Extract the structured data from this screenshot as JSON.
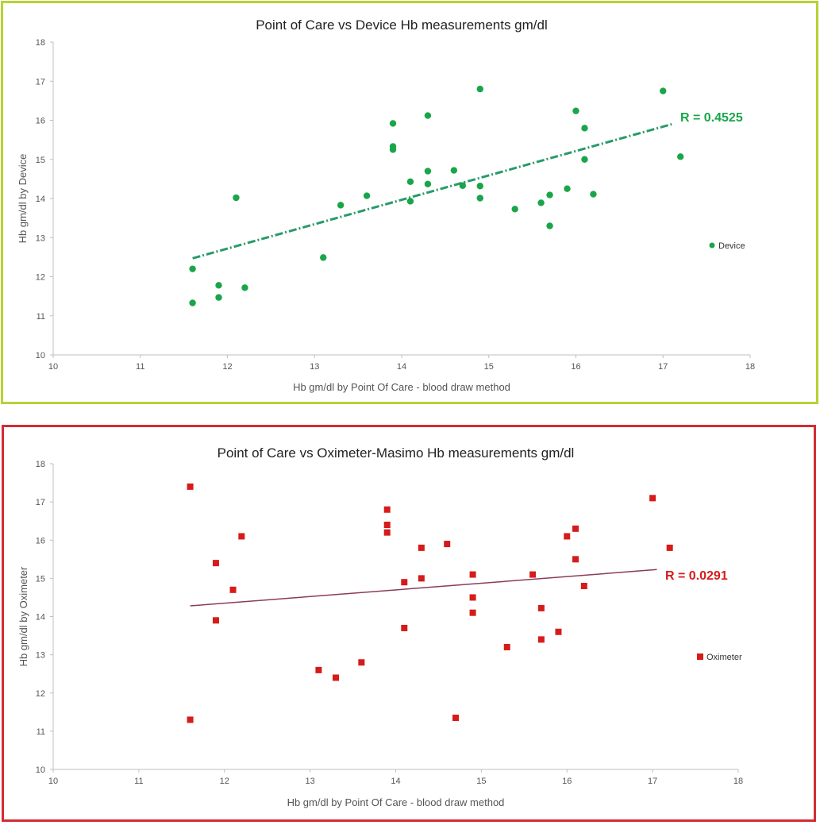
{
  "chart_data": [
    {
      "type": "scatter",
      "title": "Point of Care vs Device Hb measurements  gm/dl",
      "xlabel": "Hb gm/dl by Point Of Care - blood draw  method",
      "ylabel": "Hb gm/dl by Device",
      "xlim": [
        10,
        18
      ],
      "ylim": [
        10,
        18
      ],
      "x_ticks": [
        "10",
        "11",
        "12",
        "13",
        "14",
        "15",
        "16",
        "17",
        "18"
      ],
      "y_ticks": [
        "10",
        "11",
        "12",
        "13",
        "14",
        "15",
        "16",
        "17",
        "18"
      ],
      "grid": false,
      "legend_position": "right",
      "marker": "circle",
      "color": "#1aa54a",
      "trend_color": "#2a9a6a",
      "trendline": {
        "x": [
          11.6,
          17.1
        ],
        "y": [
          12.47,
          15.9
        ],
        "style": "dash-dot"
      },
      "annotation": "R = 0.4525",
      "series": [
        {
          "name": "Device",
          "points": [
            [
              11.6,
              11.33
            ],
            [
              11.6,
              12.2
            ],
            [
              11.9,
              11.78
            ],
            [
              11.9,
              11.47
            ],
            [
              12.1,
              14.02
            ],
            [
              12.2,
              11.72
            ],
            [
              13.1,
              12.49
            ],
            [
              13.3,
              13.83
            ],
            [
              13.6,
              14.07
            ],
            [
              13.9,
              15.92
            ],
            [
              13.9,
              15.33
            ],
            [
              13.9,
              15.25
            ],
            [
              14.1,
              14.43
            ],
            [
              14.1,
              13.93
            ],
            [
              14.3,
              16.12
            ],
            [
              14.3,
              14.7
            ],
            [
              14.3,
              14.37
            ],
            [
              14.6,
              14.72
            ],
            [
              14.7,
              14.33
            ],
            [
              14.9,
              16.8
            ],
            [
              14.9,
              14.32
            ],
            [
              14.9,
              14.01
            ],
            [
              15.3,
              13.73
            ],
            [
              15.6,
              13.89
            ],
            [
              15.7,
              14.09
            ],
            [
              15.7,
              13.3
            ],
            [
              15.9,
              14.25
            ],
            [
              16.0,
              16.24
            ],
            [
              16.1,
              15.8
            ],
            [
              16.1,
              15.0
            ],
            [
              16.2,
              14.11
            ],
            [
              17.0,
              16.75
            ],
            [
              17.2,
              15.07
            ]
          ]
        }
      ]
    },
    {
      "type": "scatter",
      "title": "Point of Care vs Oximeter-Masimo  Hb measurements  gm/dl",
      "xlabel": "Hb gm/dl by Point Of Care - blood draw  method",
      "ylabel": "Hb gm/dl by Oximeter",
      "xlim": [
        10,
        18
      ],
      "ylim": [
        10,
        18
      ],
      "x_ticks": [
        "10",
        "11",
        "12",
        "13",
        "14",
        "15",
        "16",
        "17",
        "18"
      ],
      "y_ticks": [
        "10",
        "11",
        "12",
        "13",
        "14",
        "15",
        "16",
        "17",
        "18"
      ],
      "grid": false,
      "legend_position": "right",
      "marker": "square",
      "color": "#d61b1b",
      "trend_color": "#8a3b5c",
      "trendline": {
        "x": [
          11.6,
          17.05
        ],
        "y": [
          14.28,
          15.23
        ],
        "style": "solid"
      },
      "annotation": "R = 0.0291",
      "series": [
        {
          "name": "Oximeter",
          "points": [
            [
              11.6,
              17.4
            ],
            [
              11.6,
              11.3
            ],
            [
              11.9,
              15.4
            ],
            [
              11.9,
              13.9
            ],
            [
              12.1,
              14.7
            ],
            [
              12.2,
              16.1
            ],
            [
              13.1,
              12.6
            ],
            [
              13.3,
              12.4
            ],
            [
              13.6,
              12.8
            ],
            [
              13.9,
              16.8
            ],
            [
              13.9,
              16.4
            ],
            [
              13.9,
              16.2
            ],
            [
              14.1,
              14.9
            ],
            [
              14.1,
              13.7
            ],
            [
              14.3,
              15.8
            ],
            [
              14.3,
              15.0
            ],
            [
              14.6,
              15.9
            ],
            [
              14.7,
              11.35
            ],
            [
              14.9,
              15.1
            ],
            [
              14.9,
              14.5
            ],
            [
              14.9,
              14.1
            ],
            [
              15.3,
              13.2
            ],
            [
              15.6,
              15.1
            ],
            [
              15.7,
              14.22
            ],
            [
              15.7,
              13.4
            ],
            [
              15.9,
              13.6
            ],
            [
              16.0,
              16.1
            ],
            [
              16.1,
              16.3
            ],
            [
              16.1,
              15.5
            ],
            [
              16.2,
              14.8
            ],
            [
              17.0,
              17.1
            ],
            [
              17.2,
              15.8
            ]
          ]
        }
      ]
    }
  ]
}
